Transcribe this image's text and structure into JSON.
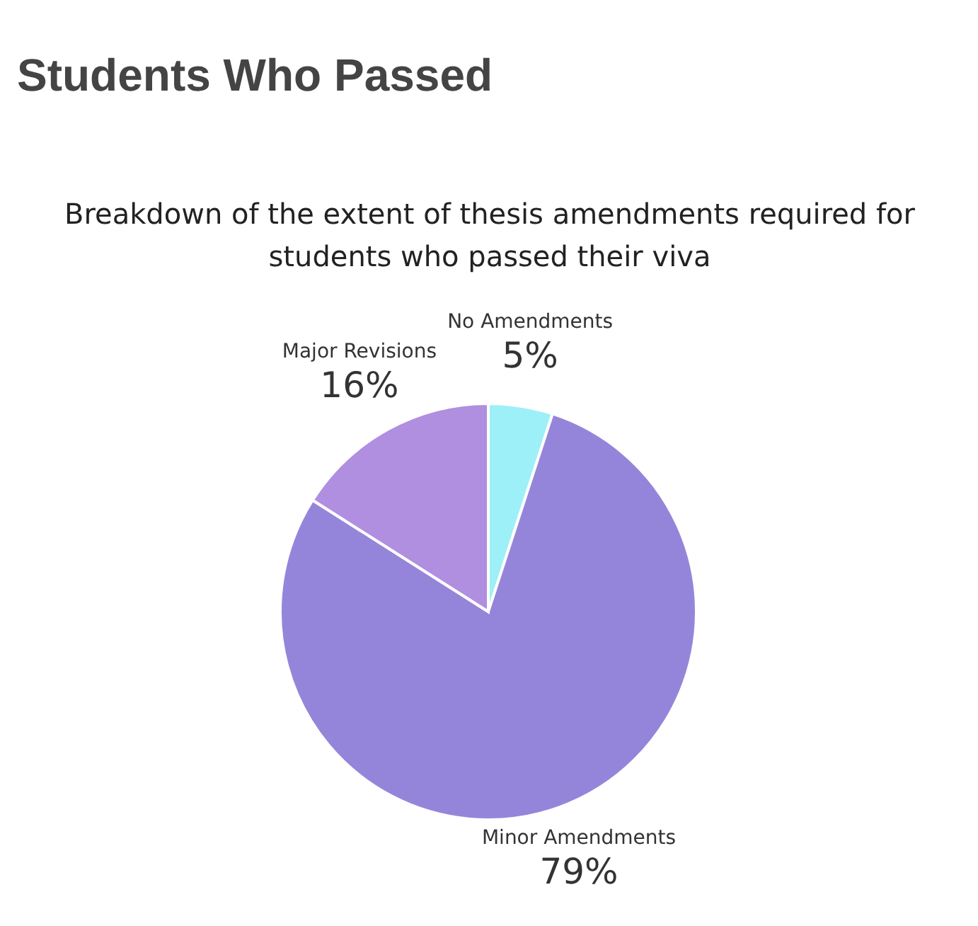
{
  "chart_data": {
    "type": "pie",
    "title": "Students Who Passed",
    "subtitle": "Breakdown of the extent of thesis amendments required for students who passed their viva",
    "categories": [
      "No Amendments",
      "Minor Amendments",
      "Major Revisions"
    ],
    "values": [
      5,
      79,
      16
    ],
    "colors": [
      "#9ef0f8",
      "#9585da",
      "#b08ee0"
    ],
    "value_labels": [
      "5%",
      "79%",
      "16%"
    ]
  }
}
